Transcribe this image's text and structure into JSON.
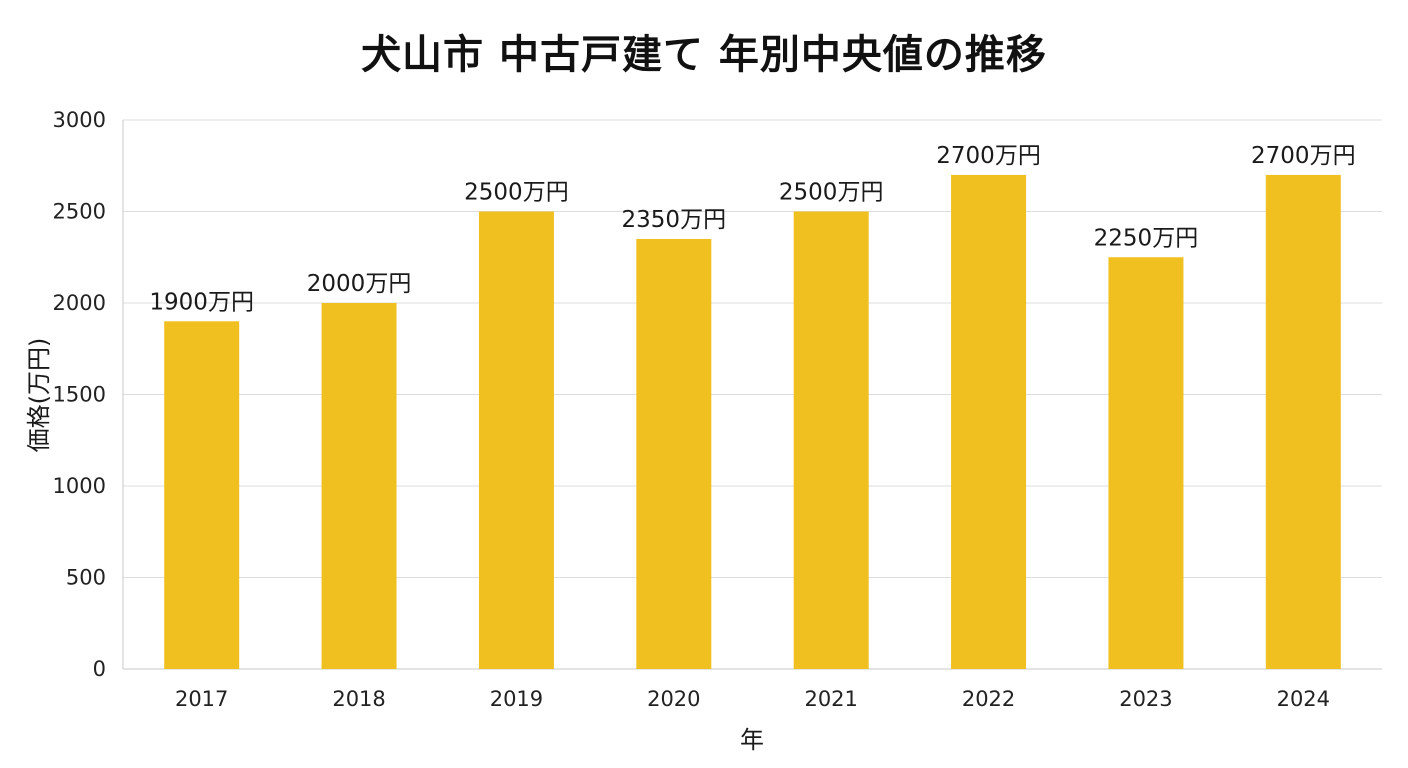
{
  "chart_data": {
    "type": "bar",
    "title": "犬山市 中古戸建て 年別中央値の推移",
    "xlabel": "年",
    "ylabel": "価格(万円)",
    "categories": [
      "2017",
      "2018",
      "2019",
      "2020",
      "2021",
      "2022",
      "2023",
      "2024"
    ],
    "values": [
      1900,
      2000,
      2500,
      2350,
      2500,
      2700,
      2250,
      2700
    ],
    "data_labels": [
      "1900万円",
      "2000万円",
      "2500万円",
      "2350万円",
      "2500万円",
      "2700万円",
      "2250万円",
      "2700万円"
    ],
    "ylim": [
      0,
      3000
    ],
    "yticks": [
      0,
      500,
      1000,
      1500,
      2000,
      2500,
      3000
    ],
    "grid": true,
    "legend": "none",
    "colors": {
      "bar": "#F0C020",
      "grid": "#DDDDDD",
      "axis": "#C8C8C8"
    }
  }
}
